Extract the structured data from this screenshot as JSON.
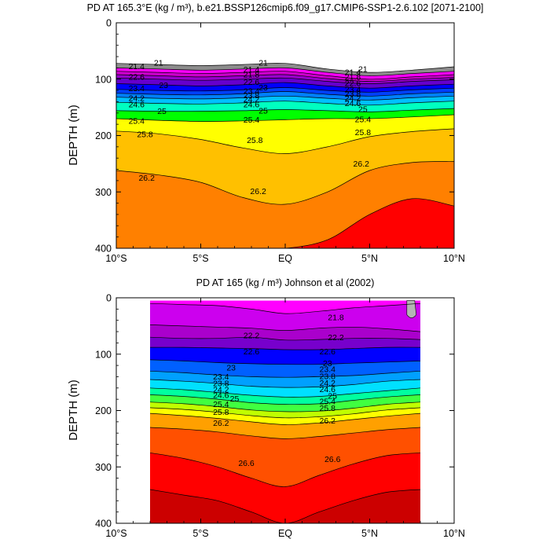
{
  "chart_data": [
    {
      "type": "contour",
      "title": "PD AT 165.3°E (kg / m³), b.e21.BSSP126cmip6.f09_g17.CMIP6-SSP1-2.6.102 [2071-2100]",
      "ylabel": "DEPTH (m)",
      "xlabel": "",
      "xlim": [
        -10,
        10
      ],
      "ylim": [
        400,
        0
      ],
      "y_reversed": true,
      "x_ticks": [
        -10,
        -5,
        0,
        5,
        10
      ],
      "x_tick_labels": [
        "10°S",
        "5°S",
        "EQ",
        "5°N",
        "10°N"
      ],
      "y_ticks": [
        0,
        100,
        200,
        300,
        400
      ],
      "y_tick_labels": [
        "0",
        "100",
        "200",
        "300",
        "400"
      ],
      "grid": false,
      "x_nodes": [
        -10,
        -7.5,
        -5,
        -2.5,
        0,
        2.5,
        5,
        7.5,
        10
      ],
      "contour_bands": [
        {
          "level": 21.0,
          "depth": [
            72,
            74,
            76,
            74,
            72,
            82,
            88,
            84,
            78
          ]
        },
        {
          "level": 21.4,
          "depth": [
            80,
            82,
            84,
            82,
            80,
            88,
            94,
            90,
            86
          ]
        },
        {
          "level": 21.8,
          "depth": [
            86,
            88,
            90,
            88,
            86,
            94,
            100,
            96,
            92
          ]
        },
        {
          "level": 22.2,
          "depth": [
            92,
            94,
            96,
            94,
            92,
            99,
            104,
            100,
            97
          ]
        },
        {
          "level": 22.6,
          "depth": [
            98,
            100,
            102,
            100,
            98,
            104,
            108,
            104,
            101
          ]
        },
        {
          "level": 23.0,
          "depth": [
            108,
            110,
            112,
            110,
            106,
            112,
            116,
            112,
            109
          ]
        },
        {
          "level": 23.4,
          "depth": [
            118,
            120,
            121,
            119,
            115,
            120,
            123,
            119,
            116
          ]
        },
        {
          "level": 23.8,
          "depth": [
            125,
            127,
            128,
            126,
            122,
            127,
            130,
            126,
            123
          ]
        },
        {
          "level": 24.2,
          "depth": [
            132,
            134,
            135,
            133,
            130,
            134,
            137,
            133,
            130
          ]
        },
        {
          "level": 24.6,
          "depth": [
            141,
            143,
            144,
            142,
            139,
            143,
            146,
            142,
            139
          ]
        },
        {
          "level": 25.0,
          "depth": [
            156,
            157,
            157,
            156,
            154,
            156,
            158,
            155,
            152
          ]
        },
        {
          "level": 25.4,
          "depth": [
            170,
            173,
            175,
            174,
            172,
            170,
            170,
            167,
            163
          ]
        },
        {
          "level": 25.8,
          "depth": [
            192,
            197,
            207,
            222,
            232,
            220,
            202,
            193,
            188
          ]
        },
        {
          "level": 26.2,
          "depth": [
            262,
            270,
            283,
            310,
            322,
            300,
            262,
            248,
            246
          ]
        },
        {
          "level": 26.6,
          "depth": [
            400,
            400,
            400,
            400,
            400,
            385,
            340,
            312,
            325
          ]
        }
      ],
      "labels": [
        {
          "text": "21",
          "lat": -7.5,
          "depth": 76
        },
        {
          "text": "21.4",
          "lat": -8.8,
          "depth": 82
        },
        {
          "text": "22.6",
          "lat": -8.8,
          "depth": 101
        },
        {
          "text": "23",
          "lat": -7.2,
          "depth": 116
        },
        {
          "text": "23.4",
          "lat": -8.8,
          "depth": 121
        },
        {
          "text": "24.2",
          "lat": -8.8,
          "depth": 139
        },
        {
          "text": "24.6",
          "lat": -8.8,
          "depth": 150
        },
        {
          "text": "25",
          "lat": -7.3,
          "depth": 162
        },
        {
          "text": "25.4",
          "lat": -8.8,
          "depth": 179
        },
        {
          "text": "25.8",
          "lat": -8.3,
          "depth": 203
        },
        {
          "text": "26.2",
          "lat": -8.2,
          "depth": 280
        },
        {
          "text": "21",
          "lat": -1.3,
          "depth": 76
        },
        {
          "text": "21.4",
          "lat": -2.0,
          "depth": 88
        },
        {
          "text": "21.8",
          "lat": -2.0,
          "depth": 97
        },
        {
          "text": "22.6",
          "lat": -2.0,
          "depth": 110
        },
        {
          "text": "23",
          "lat": -1.3,
          "depth": 120
        },
        {
          "text": "23.4",
          "lat": -2.0,
          "depth": 126
        },
        {
          "text": "23.8",
          "lat": -2.0,
          "depth": 134
        },
        {
          "text": "24.2",
          "lat": -2.0,
          "depth": 141
        },
        {
          "text": "24.6",
          "lat": -2.0,
          "depth": 150
        },
        {
          "text": "25",
          "lat": -1.3,
          "depth": 161
        },
        {
          "text": "25.4",
          "lat": -2.0,
          "depth": 177
        },
        {
          "text": "25.8",
          "lat": -1.8,
          "depth": 213
        },
        {
          "text": "26.2",
          "lat": -1.6,
          "depth": 304
        },
        {
          "text": "21",
          "lat": 4.6,
          "depth": 87
        },
        {
          "text": "21.4",
          "lat": 4.0,
          "depth": 93
        },
        {
          "text": "21.8",
          "lat": 4.0,
          "depth": 101
        },
        {
          "text": "22.6",
          "lat": 4.0,
          "depth": 112
        },
        {
          "text": "23.4",
          "lat": 4.0,
          "depth": 123
        },
        {
          "text": "23.8",
          "lat": 4.0,
          "depth": 131
        },
        {
          "text": "24.2",
          "lat": 4.0,
          "depth": 139
        },
        {
          "text": "24.6",
          "lat": 4.0,
          "depth": 148
        },
        {
          "text": "25",
          "lat": 4.6,
          "depth": 158
        },
        {
          "text": "25.4",
          "lat": 4.6,
          "depth": 176
        },
        {
          "text": "25.8",
          "lat": 4.6,
          "depth": 199
        },
        {
          "text": "26.2",
          "lat": 4.5,
          "depth": 255
        }
      ],
      "colors": {
        "above_top": "#ffffff",
        "bands": [
          "#8c8c8c",
          "#ff00ff",
          "#cc00cc",
          "#9900cc",
          "#6600cc",
          "#0000ff",
          "#0040ff",
          "#0080ff",
          "#00c0ff",
          "#00ffc0",
          "#00ff00",
          "#ffff00",
          "#ffc000",
          "#ff8000",
          "#ff0000",
          "#cc0000"
        ]
      }
    },
    {
      "type": "contour",
      "title": "PD AT 165 (kg / m³) Johnson et al (2002)",
      "ylabel": "DEPTH (m)",
      "xlabel": "",
      "xlim": [
        -10,
        10
      ],
      "ylim": [
        400,
        0
      ],
      "y_reversed": true,
      "data_extent_x": [
        -8,
        8
      ],
      "data_extent_depth": [
        5,
        400
      ],
      "x_ticks": [
        -10,
        -5,
        0,
        5,
        10
      ],
      "x_tick_labels": [
        "10°S",
        "5°S",
        "EQ",
        "5°N",
        "10°N"
      ],
      "y_ticks": [
        0,
        100,
        200,
        300,
        400
      ],
      "y_tick_labels": [
        "0",
        "100",
        "200",
        "300",
        "400"
      ],
      "grid": false,
      "x_nodes": [
        -8,
        -6,
        -4,
        -2,
        0,
        2,
        4,
        6,
        8
      ],
      "contour_bands": [
        {
          "level": 21.4,
          "depth": [
            10,
            12,
            14,
            20,
            28,
            24,
            18,
            14,
            10
          ]
        },
        {
          "level": 21.8,
          "depth": [
            48,
            50,
            52,
            54,
            58,
            54,
            52,
            55,
            60
          ]
        },
        {
          "level": 22.2,
          "depth": [
            70,
            72,
            72,
            70,
            75,
            74,
            72,
            72,
            74
          ]
        },
        {
          "level": 22.6,
          "depth": [
            88,
            88,
            89,
            90,
            92,
            92,
            90,
            88,
            88
          ]
        },
        {
          "level": 23.0,
          "depth": [
            110,
            112,
            115,
            117,
            118,
            118,
            116,
            114,
            112
          ]
        },
        {
          "level": 23.4,
          "depth": [
            130,
            133,
            137,
            140,
            141,
            140,
            138,
            134,
            130
          ]
        },
        {
          "level": 23.8,
          "depth": [
            145,
            148,
            152,
            157,
            159,
            158,
            154,
            148,
            145
          ]
        },
        {
          "level": 24.2,
          "depth": [
            160,
            163,
            168,
            173,
            176,
            175,
            170,
            165,
            160
          ]
        },
        {
          "level": 24.6,
          "depth": [
            172,
            175,
            180,
            186,
            189,
            188,
            182,
            176,
            172
          ]
        },
        {
          "level": 25.0,
          "depth": [
            185,
            188,
            193,
            199,
            202,
            201,
            196,
            189,
            185
          ]
        },
        {
          "level": 25.4,
          "depth": [
            195,
            198,
            203,
            209,
            213,
            211,
            206,
            199,
            195
          ]
        },
        {
          "level": 25.8,
          "depth": [
            205,
            209,
            214,
            220,
            225,
            222,
            216,
            210,
            205
          ]
        },
        {
          "level": 26.2,
          "depth": [
            230,
            233,
            238,
            245,
            250,
            246,
            240,
            234,
            230
          ]
        },
        {
          "level": 26.6,
          "depth": [
            275,
            285,
            300,
            320,
            335,
            315,
            295,
            280,
            275
          ]
        },
        {
          "level": 27.0,
          "depth": [
            340,
            350,
            360,
            380,
            400,
            380,
            360,
            345,
            340
          ]
        }
      ],
      "labels": [
        {
          "text": "21.8",
          "lat": 3.0,
          "depth": 40
        },
        {
          "text": "22.2",
          "lat": -2.0,
          "depth": 72
        },
        {
          "text": "22.2",
          "lat": 3.0,
          "depth": 75
        },
        {
          "text": "22.6",
          "lat": -2.0,
          "depth": 100
        },
        {
          "text": "22.6",
          "lat": 2.5,
          "depth": 100
        },
        {
          "text": "23",
          "lat": -3.2,
          "depth": 129
        },
        {
          "text": "23",
          "lat": 2.5,
          "depth": 121
        },
        {
          "text": "23.4",
          "lat": -3.8,
          "depth": 145
        },
        {
          "text": "23.4",
          "lat": 2.5,
          "depth": 132
        },
        {
          "text": "23.8",
          "lat": -3.8,
          "depth": 157
        },
        {
          "text": "23.8",
          "lat": 2.5,
          "depth": 144
        },
        {
          "text": "24.2",
          "lat": -3.8,
          "depth": 168
        },
        {
          "text": "24.2",
          "lat": 2.5,
          "depth": 156
        },
        {
          "text": "24.6",
          "lat": -3.8,
          "depth": 178
        },
        {
          "text": "24.6",
          "lat": 2.5,
          "depth": 167
        },
        {
          "text": "25",
          "lat": -3.0,
          "depth": 184
        },
        {
          "text": "25",
          "lat": 2.8,
          "depth": 179
        },
        {
          "text": "25.4",
          "lat": -3.8,
          "depth": 194
        },
        {
          "text": "25.4",
          "lat": 2.5,
          "depth": 189
        },
        {
          "text": "25.8",
          "lat": -3.8,
          "depth": 208
        },
        {
          "text": "25.8",
          "lat": 2.5,
          "depth": 201
        },
        {
          "text": "26.2",
          "lat": -3.8,
          "depth": 227
        },
        {
          "text": "26.2",
          "lat": 2.5,
          "depth": 223
        },
        {
          "text": "26.6",
          "lat": -2.3,
          "depth": 298
        },
        {
          "text": "26.6",
          "lat": 2.8,
          "depth": 291
        }
      ],
      "colors": {
        "bands": [
          "#ff00ff",
          "#cc00ee",
          "#aa00cc",
          "#7700cc",
          "#0000ff",
          "#0060ff",
          "#00a0ff",
          "#00e0ff",
          "#00ffa0",
          "#40ff40",
          "#c0ff00",
          "#ffff00",
          "#ffa000",
          "#ff5000",
          "#ff0000",
          "#cc0000",
          "#aa0000"
        ],
        "missing": "#b4b4b4"
      }
    }
  ]
}
